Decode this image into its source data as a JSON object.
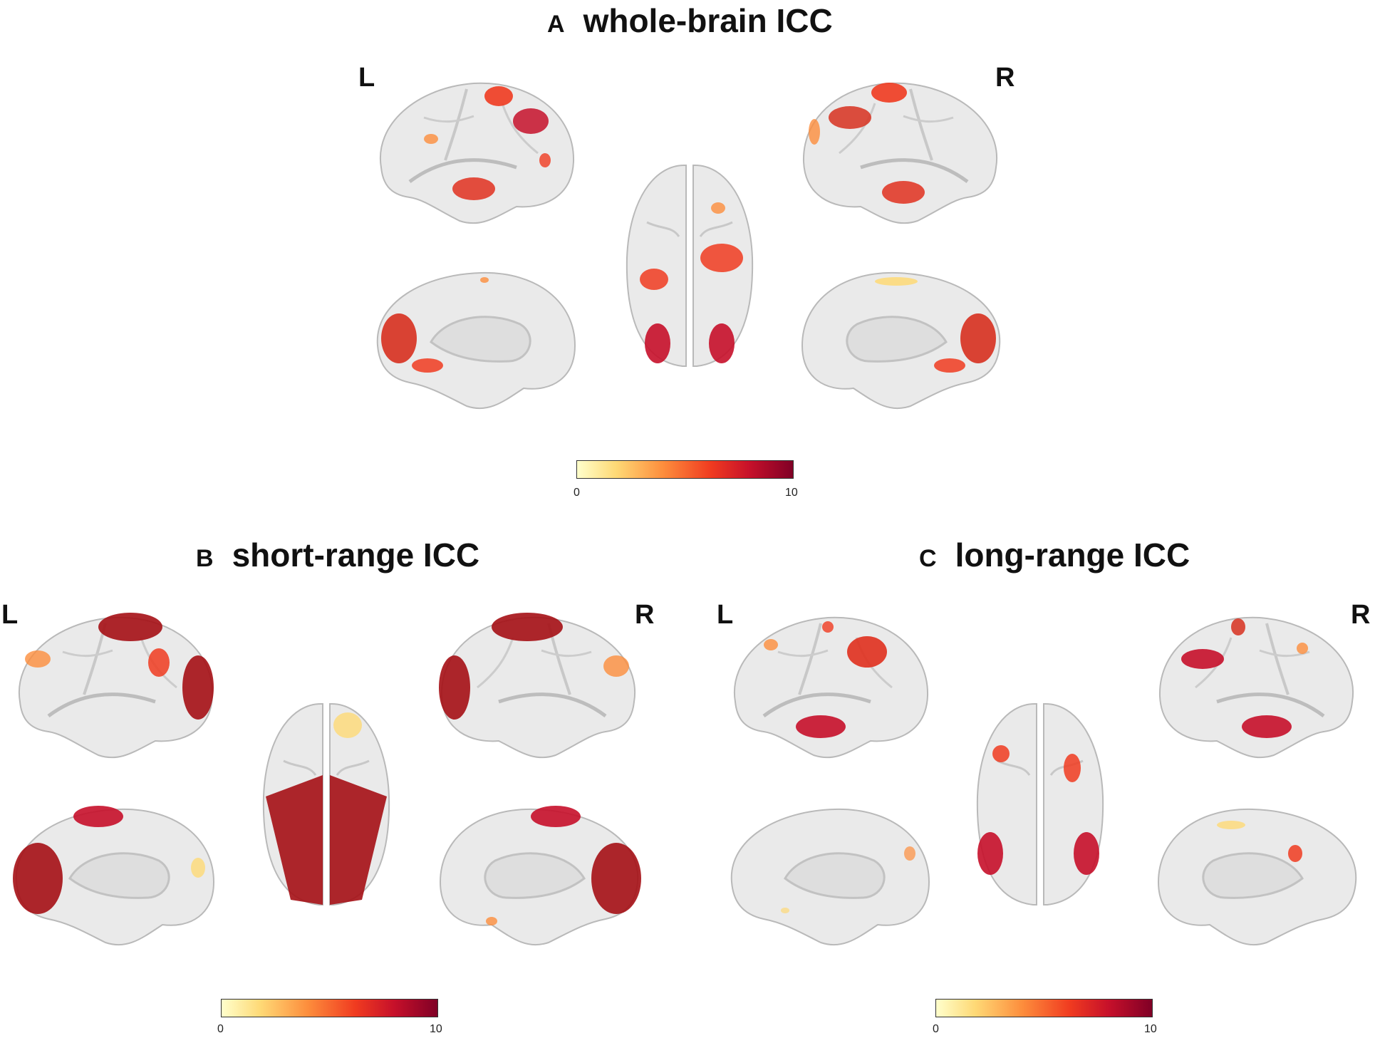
{
  "panels": {
    "a": {
      "letter": "A",
      "title": "whole-brain ICC",
      "left_label": "L",
      "right_label": "R"
    },
    "b": {
      "letter": "B",
      "title": "short-range ICC",
      "left_label": "L",
      "right_label": "R"
    },
    "c": {
      "letter": "C",
      "title": "long-range ICC",
      "left_label": "L",
      "right_label": "R"
    }
  },
  "colorbar": {
    "min_label": "0",
    "max_label": "10",
    "min": 0,
    "max": 10,
    "colors": [
      "#ffffcc",
      "#fed976",
      "#fd8d3c",
      "#f03b20",
      "#c6102a",
      "#800026"
    ]
  },
  "brain_colors": {
    "surface": "#eaeaea",
    "shadow": "#c9c9c9",
    "low": "#fed976",
    "mid": "#f03b20",
    "high": "#a50f15"
  }
}
